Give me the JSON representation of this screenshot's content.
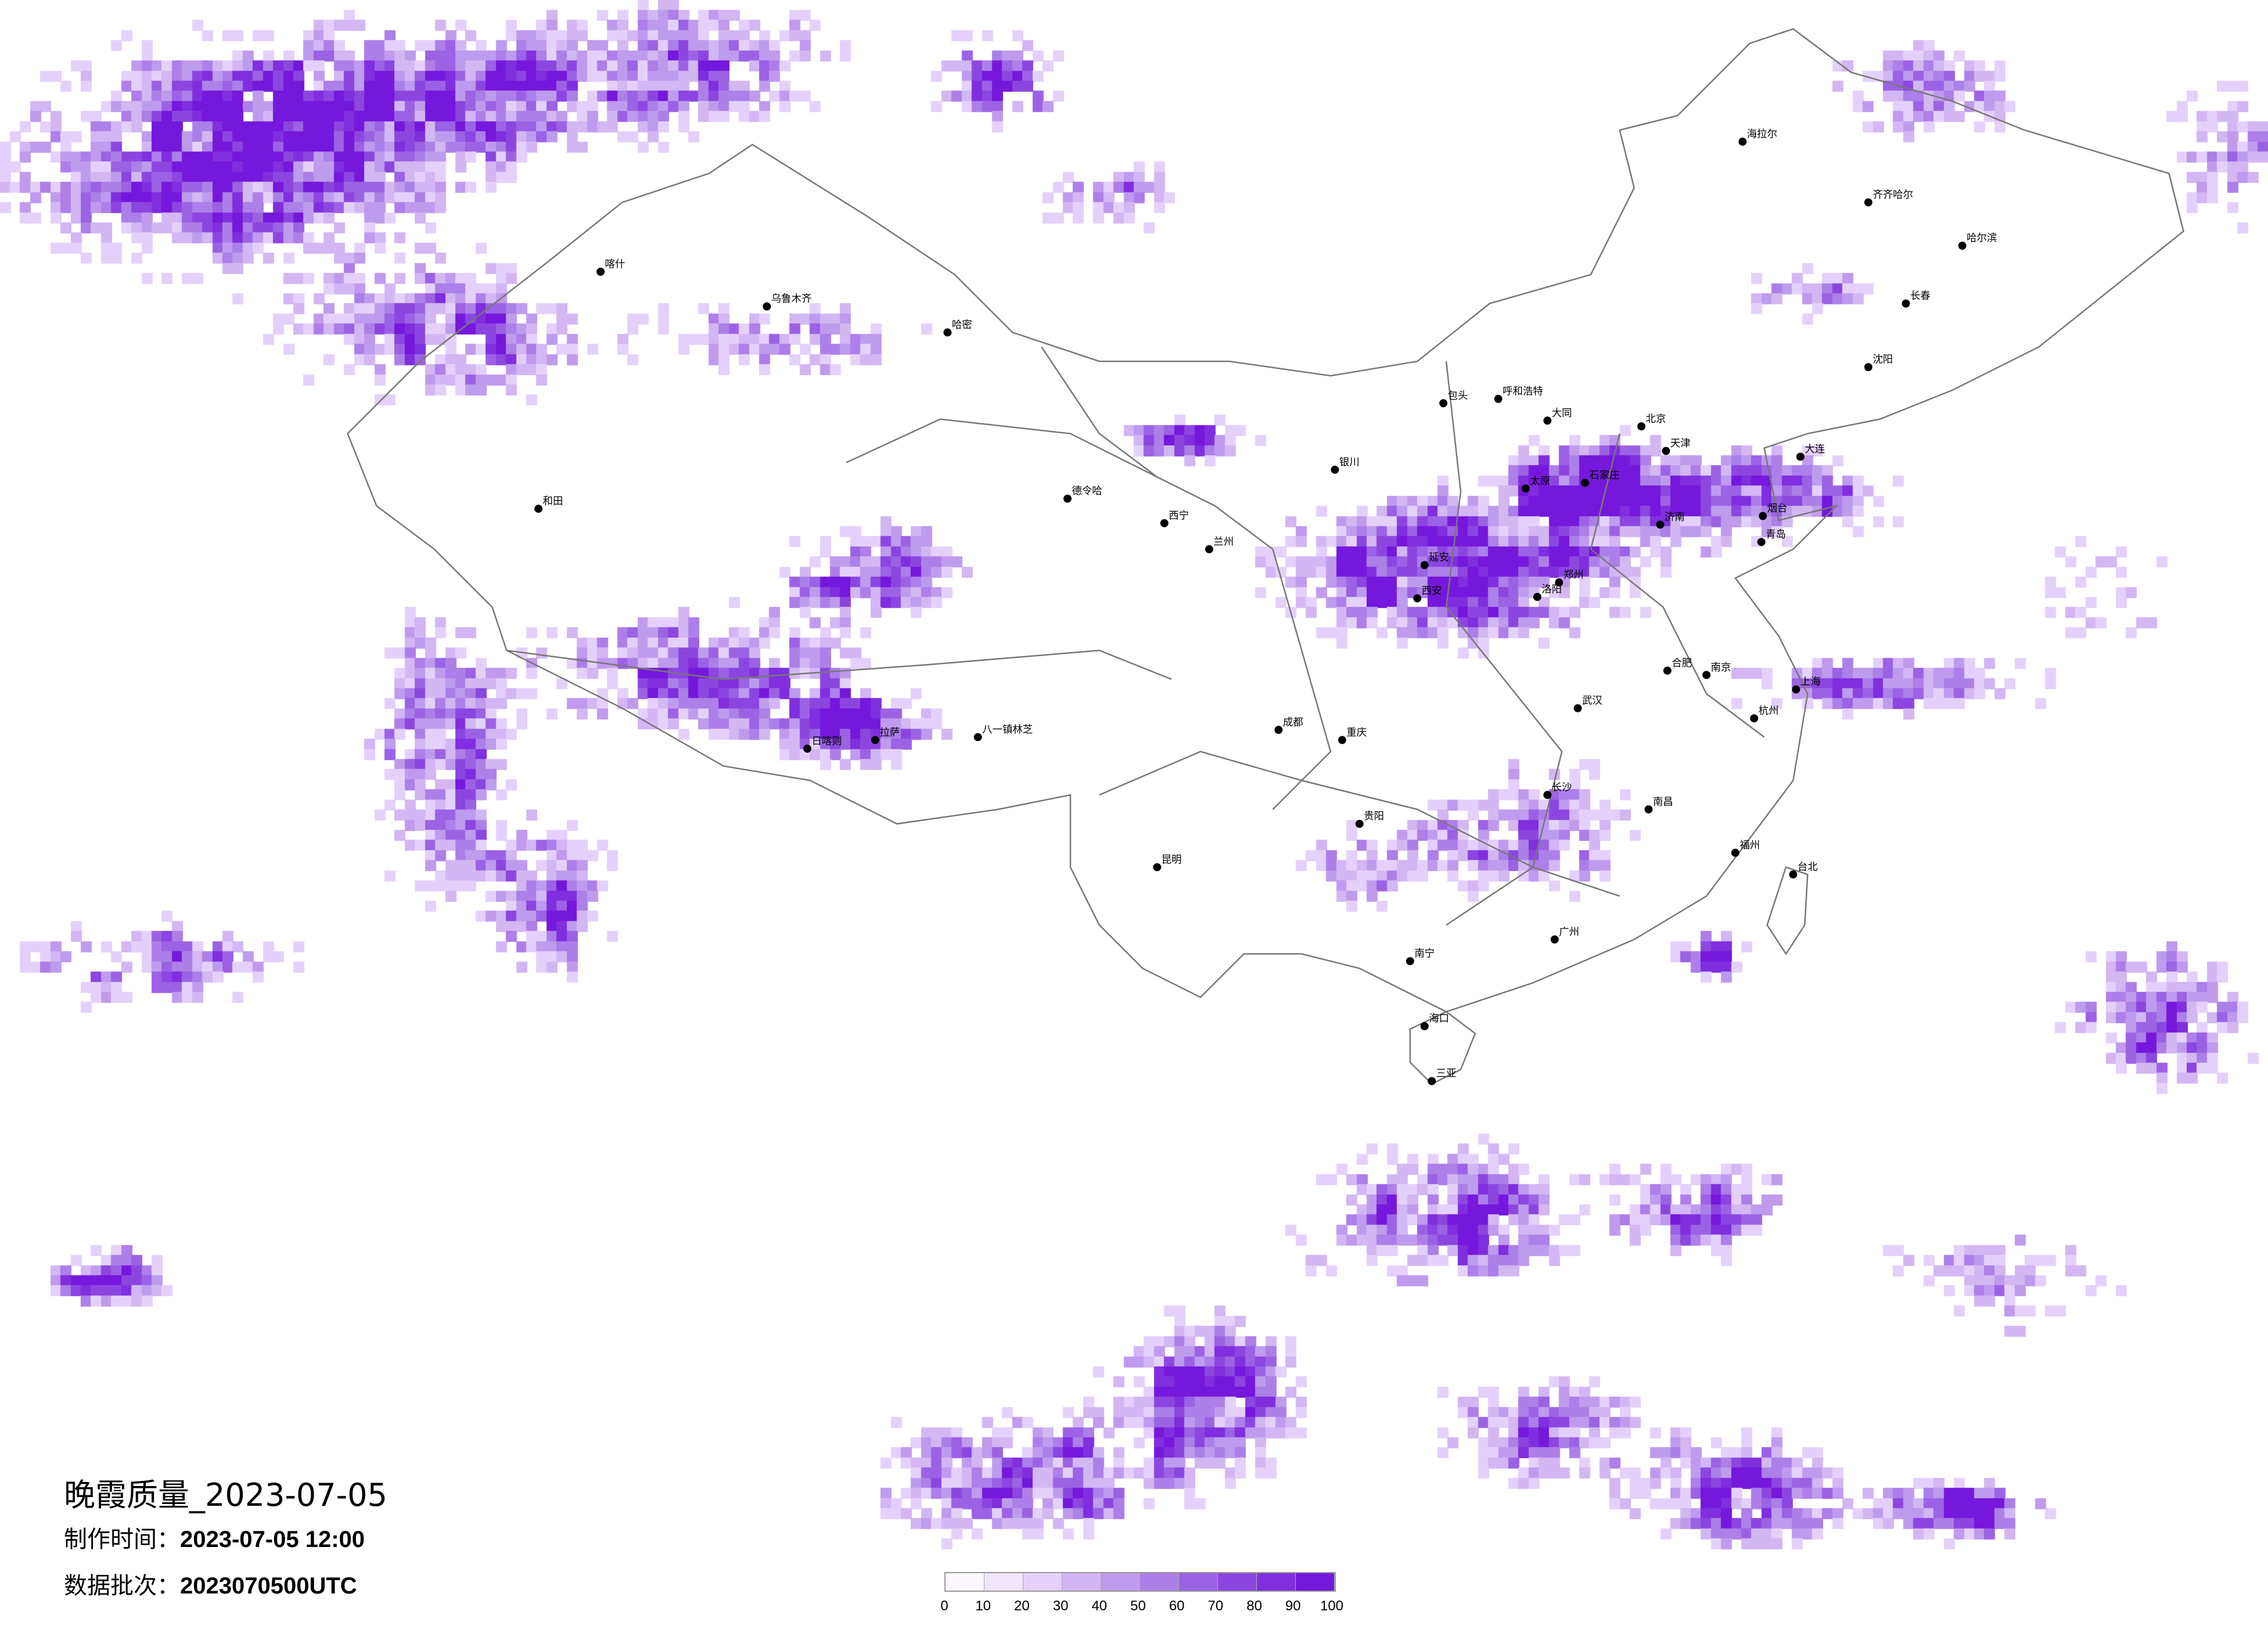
{
  "title": "晚霞质量_2023-07-05",
  "made_time_label": "制作时间：",
  "made_time_value": "2023-07-05 12:00",
  "batch_label": "数据批次：",
  "batch_value": "2023070500UTC",
  "legend": {
    "ticks": [
      "0",
      "10",
      "20",
      "30",
      "40",
      "50",
      "60",
      "70",
      "80",
      "90",
      "100"
    ],
    "colors": [
      "#fdf8ff",
      "#f1e6fd",
      "#e4d1fb",
      "#d2b7f3",
      "#bf9bee",
      "#ad7fe8",
      "#9c62e4",
      "#8c46e0",
      "#7f2fdd",
      "#7418db"
    ]
  },
  "map": {
    "boundary_color": "#777777",
    "cities": [
      "北京",
      "天津",
      "石家庄",
      "太原",
      "郑州",
      "济南",
      "青岛",
      "西安",
      "南京",
      "上海",
      "杭州",
      "合肥",
      "武汉",
      "大连",
      "沈阳",
      "呼和浩特",
      "包头",
      "银川",
      "重庆",
      "大同",
      "哈尔滨",
      "长春",
      "乌鲁木齐",
      "日喀则",
      "拉萨",
      "八一镇林芝",
      "广州",
      "海口",
      "三亚",
      "贵阳",
      "台北",
      "海拉尔",
      "齐齐哈尔",
      "喀什",
      "和田",
      "德令哈",
      "哈密",
      "延安",
      "洛阳",
      "烟台",
      "长沙",
      "南昌",
      "福州",
      "昆明",
      "成都",
      "兰州",
      "西宁",
      "南宁"
    ]
  }
}
